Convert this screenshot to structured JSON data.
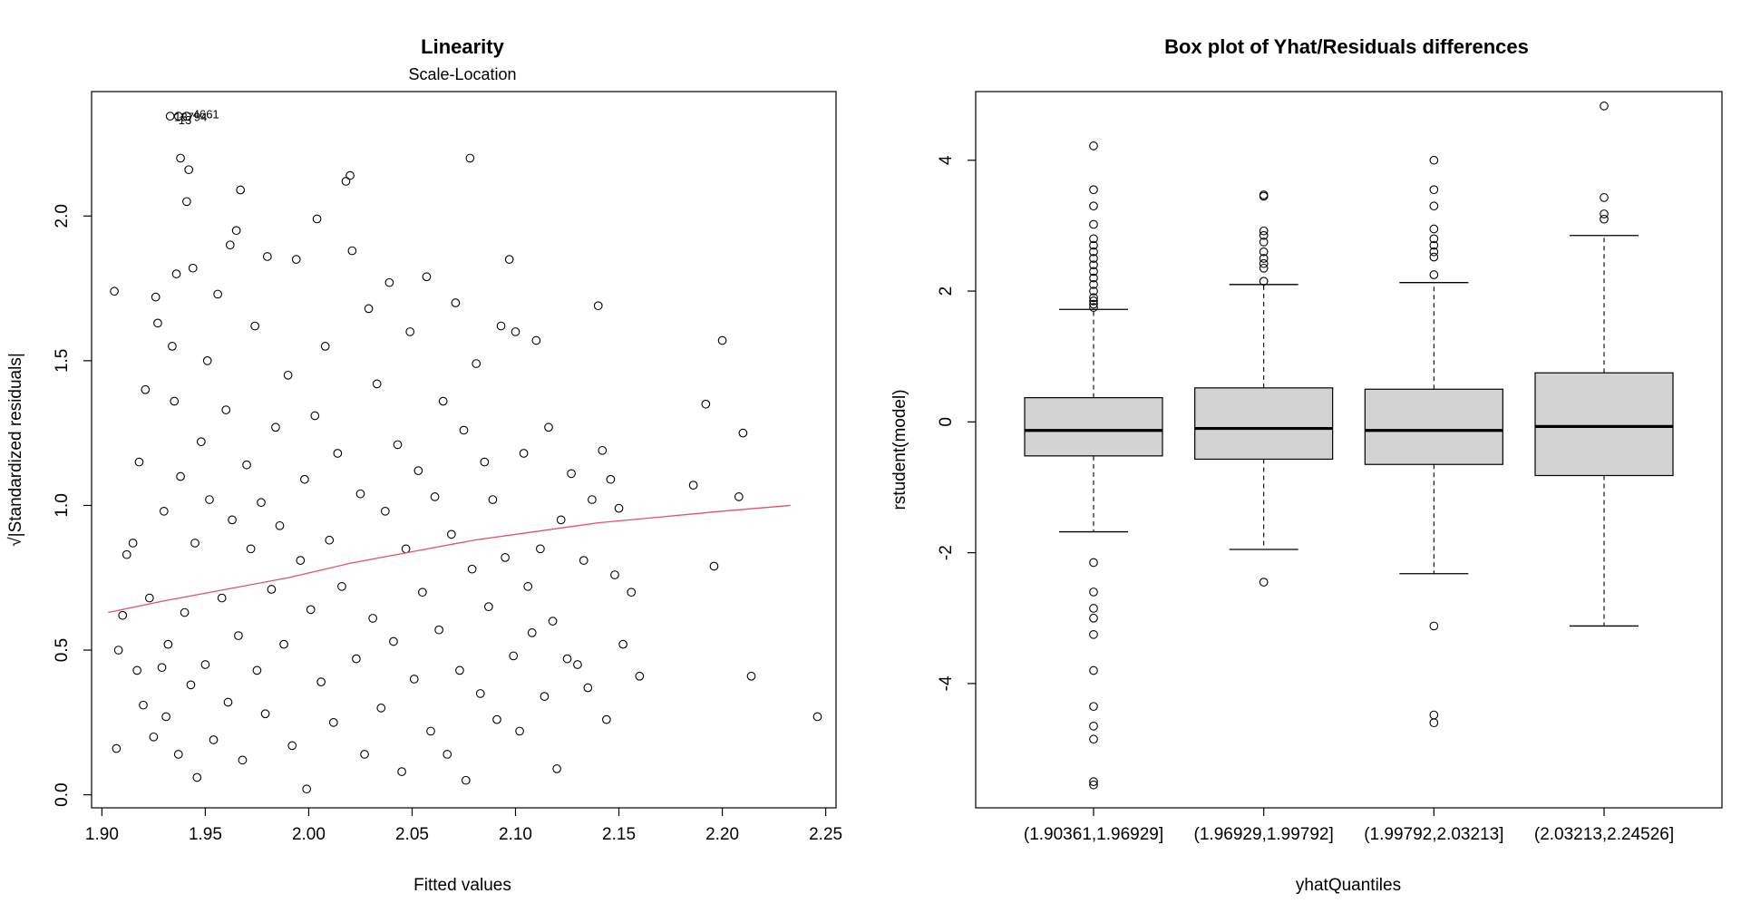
{
  "chart_data": [
    {
      "type": "scatter",
      "title": "Linearity",
      "subtitle": "Scale-Location",
      "xlabel": "Fitted values",
      "ylabel": "√|Standardized residuals|",
      "xlim": [
        1.895,
        2.255
      ],
      "ylim": [
        -0.045,
        2.43
      ],
      "xticks": [
        "1.90",
        "1.95",
        "2.00",
        "2.05",
        "2.10",
        "2.15",
        "2.20",
        "2.25"
      ],
      "yticks": [
        "0.0",
        "0.5",
        "1.0",
        "1.5",
        "2.0"
      ],
      "grid": false,
      "points": [
        [
          1.906,
          1.74
        ],
        [
          1.907,
          0.16
        ],
        [
          1.908,
          0.5
        ],
        [
          1.91,
          0.62
        ],
        [
          1.912,
          0.83
        ],
        [
          1.915,
          0.87
        ],
        [
          1.917,
          0.43
        ],
        [
          1.918,
          1.15
        ],
        [
          1.92,
          0.31
        ],
        [
          1.921,
          1.4
        ],
        [
          1.923,
          0.68
        ],
        [
          1.925,
          0.2
        ],
        [
          1.926,
          1.72
        ],
        [
          1.927,
          1.63
        ],
        [
          1.929,
          0.44
        ],
        [
          1.93,
          0.98
        ],
        [
          1.931,
          0.27
        ],
        [
          1.932,
          0.52
        ],
        [
          1.934,
          1.55
        ],
        [
          1.935,
          1.36
        ],
        [
          1.936,
          1.8
        ],
        [
          1.937,
          0.14
        ],
        [
          1.938,
          1.1
        ],
        [
          1.938,
          2.2
        ],
        [
          1.94,
          0.63
        ],
        [
          1.941,
          2.05
        ],
        [
          1.942,
          2.16
        ],
        [
          1.943,
          0.38
        ],
        [
          1.944,
          1.82
        ],
        [
          1.945,
          0.87
        ],
        [
          1.946,
          0.06
        ],
        [
          1.948,
          1.22
        ],
        [
          1.95,
          0.45
        ],
        [
          1.951,
          1.5
        ],
        [
          1.952,
          1.02
        ],
        [
          1.954,
          0.19
        ],
        [
          1.956,
          1.73
        ],
        [
          1.958,
          0.68
        ],
        [
          1.96,
          1.33
        ],
        [
          1.961,
          0.32
        ],
        [
          1.962,
          1.9
        ],
        [
          1.963,
          0.95
        ],
        [
          1.965,
          1.95
        ],
        [
          1.966,
          0.55
        ],
        [
          1.967,
          2.09
        ],
        [
          1.968,
          0.12
        ],
        [
          1.97,
          1.14
        ],
        [
          1.972,
          0.85
        ],
        [
          1.974,
          1.62
        ],
        [
          1.975,
          0.43
        ],
        [
          1.977,
          1.01
        ],
        [
          1.979,
          0.28
        ],
        [
          1.98,
          1.86
        ],
        [
          1.982,
          0.71
        ],
        [
          1.984,
          1.27
        ],
        [
          1.986,
          0.93
        ],
        [
          1.988,
          0.52
        ],
        [
          1.99,
          1.45
        ],
        [
          1.992,
          0.17
        ],
        [
          1.994,
          1.85
        ],
        [
          1.996,
          0.81
        ],
        [
          1.998,
          1.09
        ],
        [
          1.999,
          0.02
        ],
        [
          2.001,
          0.64
        ],
        [
          2.003,
          1.31
        ],
        [
          2.004,
          1.99
        ],
        [
          2.006,
          0.39
        ],
        [
          2.008,
          1.55
        ],
        [
          2.01,
          0.88
        ],
        [
          2.012,
          0.25
        ],
        [
          2.014,
          1.18
        ],
        [
          2.016,
          0.72
        ],
        [
          2.018,
          2.12
        ],
        [
          2.02,
          2.14
        ],
        [
          2.021,
          1.88
        ],
        [
          2.023,
          0.47
        ],
        [
          2.025,
          1.04
        ],
        [
          2.027,
          0.14
        ],
        [
          2.029,
          1.68
        ],
        [
          2.031,
          0.61
        ],
        [
          2.033,
          1.42
        ],
        [
          2.035,
          0.3
        ],
        [
          2.037,
          0.98
        ],
        [
          2.039,
          1.77
        ],
        [
          2.041,
          0.53
        ],
        [
          2.043,
          1.21
        ],
        [
          2.045,
          0.08
        ],
        [
          2.047,
          0.85
        ],
        [
          2.049,
          1.6
        ],
        [
          2.051,
          0.4
        ],
        [
          2.053,
          1.12
        ],
        [
          2.055,
          0.7
        ],
        [
          2.057,
          1.79
        ],
        [
          2.059,
          0.22
        ],
        [
          2.061,
          1.03
        ],
        [
          2.063,
          0.57
        ],
        [
          2.065,
          1.36
        ],
        [
          2.067,
          0.14
        ],
        [
          2.069,
          0.9
        ],
        [
          2.071,
          1.7
        ],
        [
          2.073,
          0.43
        ],
        [
          2.075,
          1.26
        ],
        [
          2.076,
          0.05
        ],
        [
          2.078,
          2.2
        ],
        [
          2.079,
          0.78
        ],
        [
          2.081,
          1.49
        ],
        [
          2.083,
          0.35
        ],
        [
          2.085,
          1.15
        ],
        [
          2.087,
          0.65
        ],
        [
          2.089,
          1.02
        ],
        [
          2.091,
          0.26
        ],
        [
          2.093,
          1.62
        ],
        [
          2.095,
          0.82
        ],
        [
          2.097,
          1.85
        ],
        [
          2.099,
          0.48
        ],
        [
          2.1,
          1.6
        ],
        [
          2.102,
          0.22
        ],
        [
          2.104,
          1.18
        ],
        [
          2.106,
          0.72
        ],
        [
          2.108,
          0.56
        ],
        [
          2.11,
          1.57
        ],
        [
          2.112,
          0.85
        ],
        [
          2.114,
          0.34
        ],
        [
          2.116,
          1.27
        ],
        [
          2.118,
          0.6
        ],
        [
          2.12,
          0.09
        ],
        [
          2.122,
          0.95
        ],
        [
          2.125,
          0.47
        ],
        [
          2.127,
          1.11
        ],
        [
          2.13,
          0.45
        ],
        [
          2.133,
          0.81
        ],
        [
          2.135,
          0.37
        ],
        [
          2.137,
          1.02
        ],
        [
          2.14,
          1.69
        ],
        [
          2.142,
          1.19
        ],
        [
          2.144,
          0.26
        ],
        [
          2.146,
          1.09
        ],
        [
          2.148,
          0.76
        ],
        [
          2.15,
          0.99
        ],
        [
          2.152,
          0.52
        ],
        [
          2.156,
          0.7
        ],
        [
          2.16,
          0.41
        ],
        [
          2.186,
          1.07
        ],
        [
          2.192,
          1.35
        ],
        [
          2.196,
          0.79
        ],
        [
          2.2,
          1.57
        ],
        [
          2.208,
          1.03
        ],
        [
          2.21,
          1.25
        ],
        [
          2.214,
          0.41
        ],
        [
          2.246,
          0.27
        ],
        [
          1.933,
          2.345
        ],
        [
          1.937,
          2.345
        ],
        [
          1.941,
          2.345
        ]
      ],
      "point_labels": [
        {
          "x": 1.935,
          "y": 2.34,
          "text": "13794"
        },
        {
          "x": 1.944,
          "y": 2.35,
          "text": "4661"
        },
        {
          "x": 1.937,
          "y": 2.33,
          "text": "13"
        }
      ],
      "smooth_line": {
        "color": "#df536b",
        "points": [
          [
            1.903,
            0.63
          ],
          [
            1.93,
            0.67
          ],
          [
            1.96,
            0.71
          ],
          [
            1.99,
            0.75
          ],
          [
            2.02,
            0.8
          ],
          [
            2.05,
            0.84
          ],
          [
            2.08,
            0.88
          ],
          [
            2.11,
            0.91
          ],
          [
            2.14,
            0.94
          ],
          [
            2.17,
            0.96
          ],
          [
            2.2,
            0.98
          ],
          [
            2.233,
            1.0
          ]
        ]
      }
    },
    {
      "type": "box",
      "title": "Box plot of Yhat/Residuals differences",
      "xlabel": "yhatQuantiles",
      "ylabel": "rstudent(model)",
      "ylim": [
        -5.9,
        5.05
      ],
      "yticks": [
        "-4",
        "-2",
        "0",
        "2",
        "4"
      ],
      "box_fill": "#d3d3d3",
      "categories": [
        "(1.90361,1.96929]",
        "(1.96929,1.99792]",
        "(1.99792,2.03213]",
        "(2.03213,2.24526]"
      ],
      "boxes": [
        {
          "q1": -0.52,
          "median": -0.13,
          "q3": 0.37,
          "whisker_low": -1.68,
          "whisker_high": 1.72,
          "outliers": [
            4.22,
            3.55,
            3.3,
            3.02,
            2.8,
            2.7,
            2.6,
            2.5,
            2.4,
            2.3,
            2.2,
            2.1,
            2.0,
            1.9,
            1.85,
            1.8,
            1.75,
            -2.15,
            -2.6,
            -2.85,
            -3.0,
            -3.25,
            -3.8,
            -4.35,
            -4.65,
            -4.85,
            -5.5,
            -5.55
          ]
        },
        {
          "q1": -0.57,
          "median": -0.1,
          "q3": 0.52,
          "whisker_low": -1.95,
          "whisker_high": 2.1,
          "outliers": [
            3.47,
            3.45,
            2.92,
            2.85,
            2.75,
            2.6,
            2.5,
            2.42,
            2.35,
            2.15,
            -2.45
          ]
        },
        {
          "q1": -0.65,
          "median": -0.13,
          "q3": 0.5,
          "whisker_low": -2.32,
          "whisker_high": 2.13,
          "outliers": [
            4.0,
            3.55,
            3.3,
            2.95,
            2.8,
            2.7,
            2.6,
            2.52,
            2.25,
            -3.12,
            -4.48,
            -4.6
          ]
        },
        {
          "q1": -0.82,
          "median": -0.07,
          "q3": 0.75,
          "whisker_low": -3.12,
          "whisker_high": 2.85,
          "outliers": [
            4.83,
            3.43,
            3.18,
            3.1
          ]
        }
      ]
    }
  ]
}
